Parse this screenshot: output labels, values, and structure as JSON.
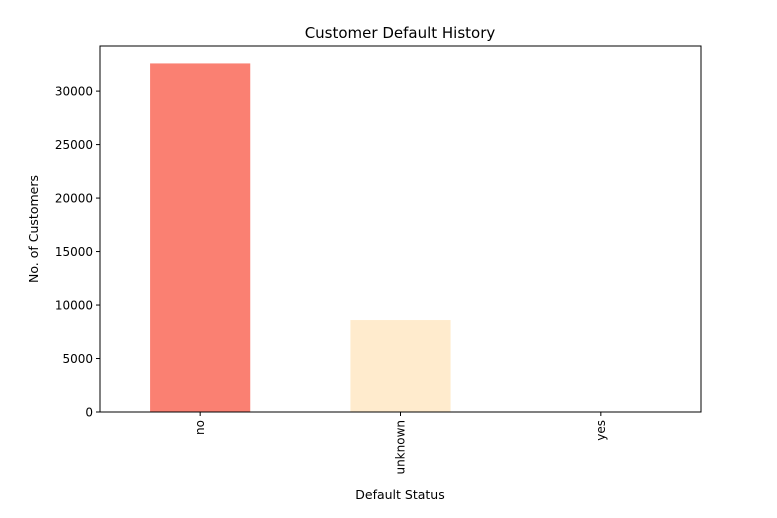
{
  "chart_data": {
    "type": "bar",
    "title": "Customer Default History",
    "xlabel": "Default Status",
    "ylabel": "No. of Customers",
    "categories": [
      "no",
      "unknown",
      "yes"
    ],
    "values": [
      32588,
      8597,
      3
    ],
    "colors": [
      "#fa8072",
      "#ffebcd",
      "#fafad2"
    ],
    "ylim": [
      0,
      34217
    ],
    "yticks": [
      0,
      5000,
      10000,
      15000,
      20000,
      25000,
      30000
    ],
    "ytick_labels": [
      "0",
      "5000",
      "10000",
      "15000",
      "20000",
      "25000",
      "30000"
    ],
    "grid": false,
    "legend": "none"
  }
}
